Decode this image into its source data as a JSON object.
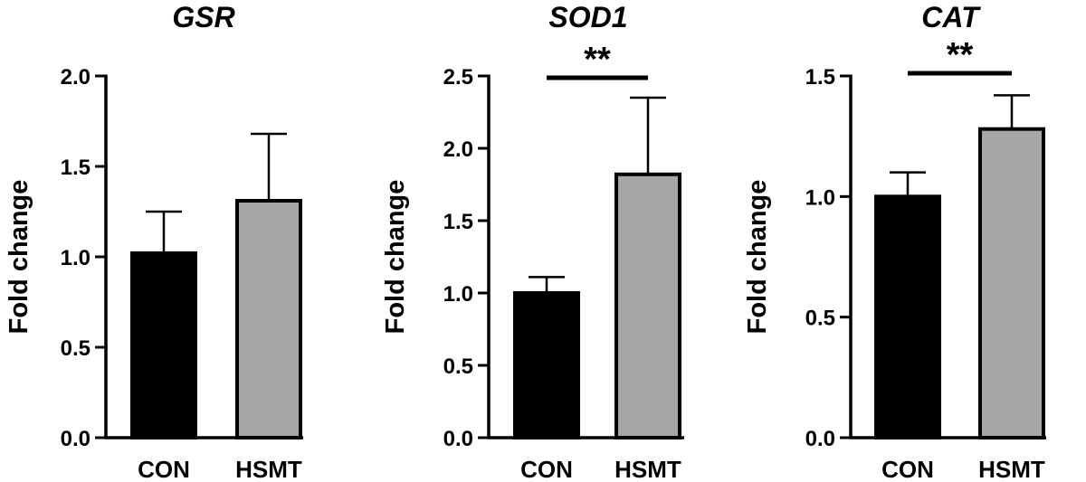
{
  "chart_data": [
    {
      "type": "bar",
      "title": "GSR",
      "ylabel": "Fold change",
      "xlabel": "",
      "categories": [
        "CON",
        "HSMT"
      ],
      "values": [
        1.02,
        1.31
      ],
      "errors": [
        0.23,
        0.37
      ],
      "colors": [
        "#000000",
        "#a6a6a6"
      ],
      "ylim": [
        0,
        2.0
      ],
      "yticks": [
        0.0,
        0.5,
        1.0,
        1.5,
        2.0
      ],
      "ytick_labels": [
        "0.0",
        "0.5",
        "1.0",
        "1.5",
        "2.0"
      ],
      "significance": null
    },
    {
      "type": "bar",
      "title": "SOD1",
      "ylabel": "Fold change",
      "xlabel": "",
      "categories": [
        "CON",
        "HSMT"
      ],
      "values": [
        1.0,
        1.82
      ],
      "errors": [
        0.11,
        0.53
      ],
      "colors": [
        "#000000",
        "#a6a6a6"
      ],
      "ylim": [
        0,
        2.5
      ],
      "yticks": [
        0.0,
        0.5,
        1.0,
        1.5,
        2.0,
        2.5
      ],
      "ytick_labels": [
        "0.0",
        "0.5",
        "1.0",
        "1.5",
        "2.0",
        "2.5"
      ],
      "significance": "**"
    },
    {
      "type": "bar",
      "title": "CAT",
      "ylabel": "Fold change",
      "xlabel": "",
      "categories": [
        "CON",
        "HSMT"
      ],
      "values": [
        1.0,
        1.28
      ],
      "errors": [
        0.1,
        0.14
      ],
      "colors": [
        "#000000",
        "#a6a6a6"
      ],
      "ylim": [
        0,
        1.5
      ],
      "yticks": [
        0.0,
        0.5,
        1.0,
        1.5
      ],
      "ytick_labels": [
        "0.0",
        "0.5",
        "1.0",
        "1.5"
      ],
      "significance": "**"
    }
  ]
}
